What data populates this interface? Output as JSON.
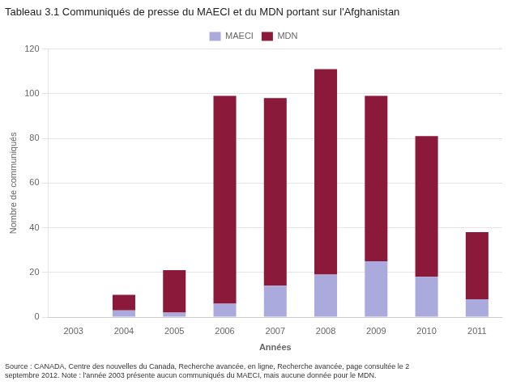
{
  "chart_data": {
    "type": "bar",
    "title": "Tableau 3.1 Communiqués de presse du MAECI et du MDN portant sur l'Afghanistan",
    "x_label": "Années",
    "y_label": "Nombre de communiqués",
    "categories": [
      "2003",
      "2004",
      "2005",
      "2006",
      "2007",
      "2008",
      "2009",
      "2010",
      "2011"
    ],
    "series": [
      {
        "name": "MAECI",
        "color": "#aaaadd",
        "values": [
          0,
          3,
          2,
          6,
          14,
          19,
          25,
          18,
          8
        ]
      },
      {
        "name": "MDN",
        "color": "#8b1a3a",
        "values": [
          0,
          7,
          19,
          93,
          84,
          92,
          74,
          63,
          30
        ]
      }
    ],
    "stacked": true,
    "ylim": [
      0,
      120
    ],
    "yticks": [
      0,
      20,
      40,
      60,
      80,
      100,
      120
    ],
    "grid": true,
    "legend": "top",
    "annotations": [
      "Source : CANADA, Centre des nouvelles du Canada, Recherche avancée, en ligne, Recherche avancée, page consultée le 2",
      "septembre 2012. Note : l'année 2003 présente aucun communiqués du MAECI, mais aucune donnée pour le MDN."
    ]
  }
}
